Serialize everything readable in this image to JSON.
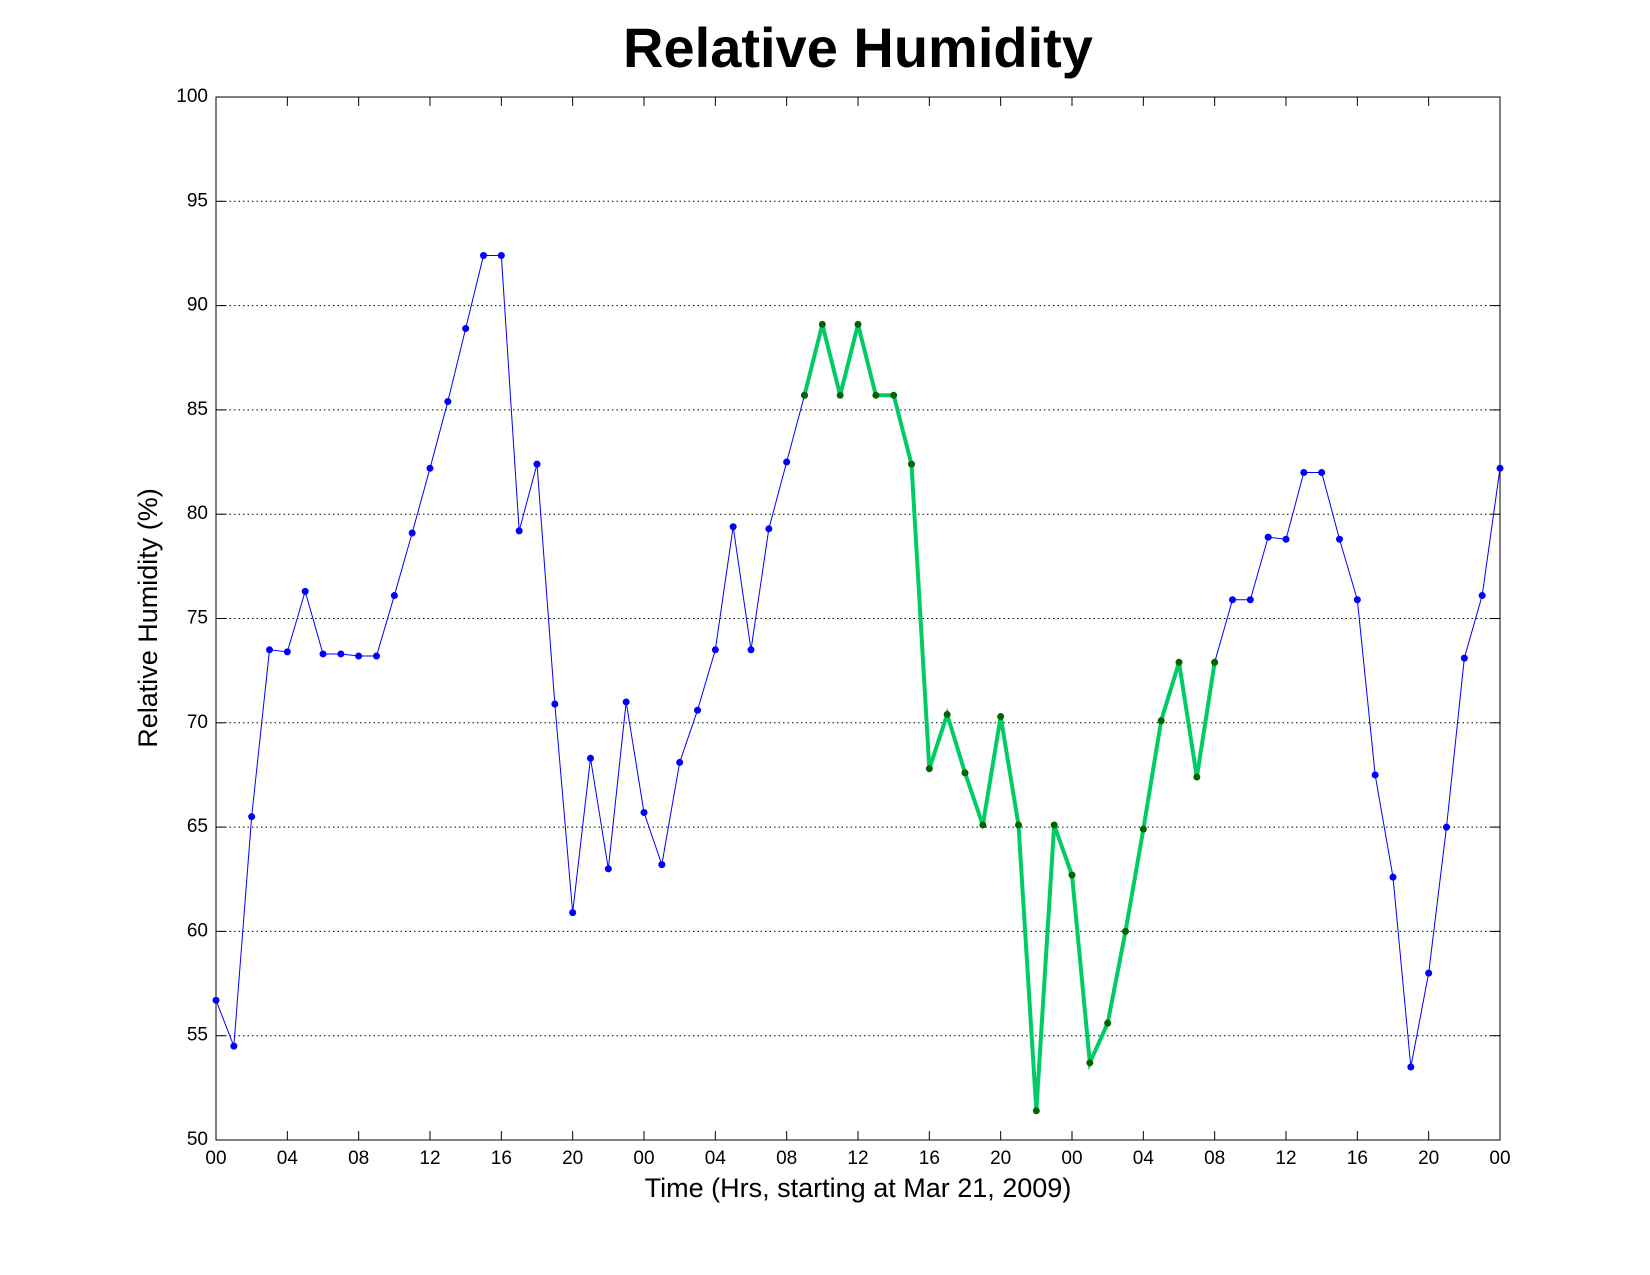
{
  "chart_data": {
    "type": "line",
    "title": "Relative Humidity",
    "x_label": "Time (Hrs, starting at Mar 21, 2009)",
    "y_label": "Relative Humidity (%)",
    "x": [
      0,
      1,
      2,
      3,
      4,
      5,
      6,
      7,
      8,
      9,
      10,
      11,
      12,
      13,
      14,
      15,
      16,
      17,
      18,
      19,
      20,
      21,
      22,
      23,
      24,
      25,
      26,
      27,
      28,
      29,
      30,
      31,
      32,
      33,
      34,
      35,
      36,
      37,
      38,
      39,
      40,
      41,
      42,
      43,
      44,
      45,
      46,
      47,
      48,
      49,
      50,
      51,
      52,
      53,
      54,
      55,
      56,
      57,
      58,
      59,
      60,
      61,
      62,
      63,
      64,
      65,
      66,
      67,
      68,
      69,
      70,
      71,
      72
    ],
    "series": [
      {
        "color": "#0000ff",
        "marker_color": "#0000ff",
        "line_width": 1,
        "values": [
          56.7,
          54.5,
          65.5,
          73.5,
          73.4,
          76.3,
          73.3,
          73.3,
          73.2,
          73.2,
          76.1,
          79.1,
          82.2,
          85.4,
          88.9,
          92.4,
          92.4,
          79.2,
          82.4,
          70.9,
          60.9,
          68.3,
          63.0,
          71.0,
          65.7,
          63.2,
          68.1,
          70.6,
          73.5,
          79.4,
          73.5,
          79.3,
          82.5,
          85.7,
          null,
          null,
          null,
          null,
          null,
          null,
          null,
          null,
          null,
          null,
          null,
          null,
          null,
          null,
          null,
          null,
          null,
          null,
          null,
          null,
          null,
          null,
          72.9,
          75.9,
          75.9,
          78.9,
          78.8,
          82.0,
          82.0,
          78.8,
          75.9,
          67.5,
          62.6,
          53.5,
          58.0,
          65.0,
          73.1,
          76.1,
          82.2
        ]
      },
      {
        "color": "#00cc66",
        "marker_color": "#006400",
        "line_width": 4,
        "values": [
          null,
          null,
          null,
          null,
          null,
          null,
          null,
          null,
          null,
          null,
          null,
          null,
          null,
          null,
          null,
          null,
          null,
          null,
          null,
          null,
          null,
          null,
          null,
          null,
          null,
          null,
          null,
          null,
          null,
          null,
          null,
          null,
          null,
          85.7,
          89.1,
          85.7,
          89.1,
          85.7,
          85.7,
          82.4,
          67.8,
          70.4,
          67.6,
          65.1,
          70.3,
          65.1,
          51.4,
          65.1,
          62.7,
          53.7,
          55.6,
          60.0,
          64.9,
          70.1,
          72.9,
          67.4,
          72.9,
          null,
          null,
          null,
          null,
          null,
          null,
          null,
          null,
          null,
          null,
          null,
          null,
          null,
          null,
          null,
          null
        ]
      }
    ],
    "xlim": [
      0,
      72
    ],
    "xticks": [
      {
        "value": 0,
        "label": "00"
      },
      {
        "value": 4,
        "label": "04"
      },
      {
        "value": 8,
        "label": "08"
      },
      {
        "value": 12,
        "label": "12"
      },
      {
        "value": 16,
        "label": "16"
      },
      {
        "value": 20,
        "label": "20"
      },
      {
        "value": 24,
        "label": "00"
      },
      {
        "value": 28,
        "label": "04"
      },
      {
        "value": 32,
        "label": "08"
      },
      {
        "value": 36,
        "label": "12"
      },
      {
        "value": 40,
        "label": "16"
      },
      {
        "value": 44,
        "label": "20"
      },
      {
        "value": 48,
        "label": "00"
      },
      {
        "value": 52,
        "label": "04"
      },
      {
        "value": 56,
        "label": "08"
      },
      {
        "value": 60,
        "label": "12"
      },
      {
        "value": 64,
        "label": "16"
      },
      {
        "value": 68,
        "label": "20"
      },
      {
        "value": 72,
        "label": "00"
      }
    ],
    "ylim": [
      50,
      100
    ],
    "yticks": [
      50,
      55,
      60,
      65,
      70,
      75,
      80,
      85,
      90,
      95,
      100
    ],
    "ygrid": true
  }
}
